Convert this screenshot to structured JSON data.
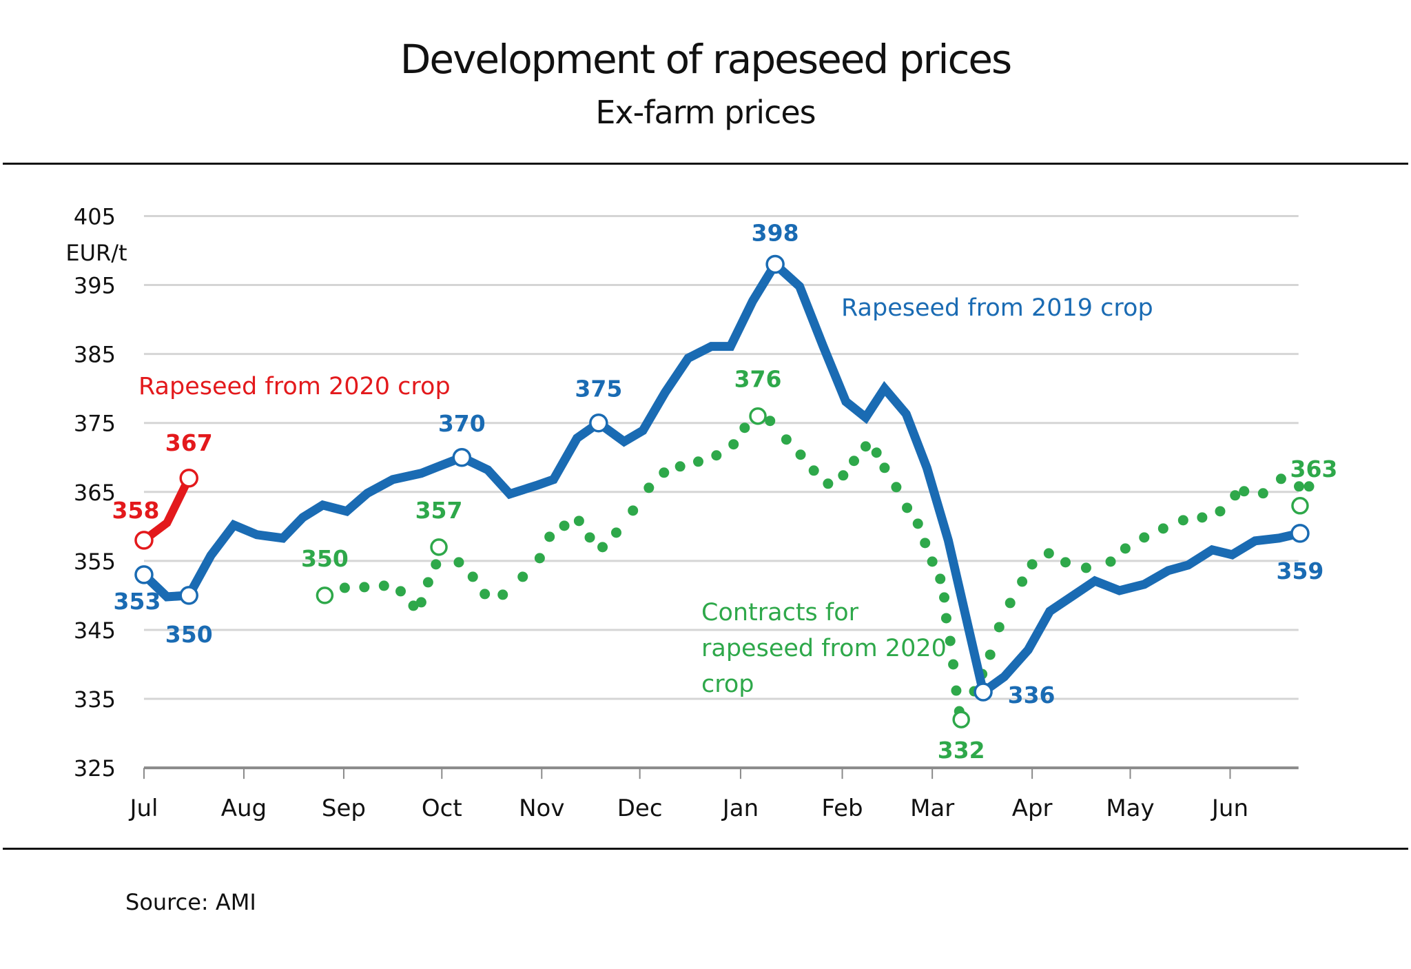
{
  "header": {
    "title": "Development of rapeseed prices",
    "subtitle": "Ex-farm prices"
  },
  "footer": {
    "source": "Source: AMI"
  },
  "colors": {
    "blue": "#1a6bb3",
    "green": "#2ea84a",
    "red": "#e3191c",
    "grid": "#d5d5d5",
    "axis": "#8a8a8a"
  },
  "chart_data": {
    "type": "line",
    "title": "Development of rapeseed prices",
    "subtitle": "Ex-farm prices",
    "xlabel": "",
    "ylabel": "EUR/t",
    "ylim": [
      325,
      405
    ],
    "yticks": [
      325,
      335,
      345,
      355,
      365,
      375,
      385,
      395,
      405
    ],
    "grid": true,
    "x_unit": "months since start of July",
    "categories": [
      "Jul",
      "Aug",
      "Sep",
      "Oct",
      "Nov",
      "Dec",
      "Jan",
      "Feb",
      "Mar",
      "Apr",
      "May",
      "Jun"
    ],
    "series": [
      {
        "name": "Rapeseed from 2019 crop",
        "color_key": "blue",
        "style": "solid",
        "x": [
          0.0,
          0.23,
          0.45,
          0.67,
          0.9,
          1.13,
          1.39,
          1.59,
          1.79,
          2.03,
          2.24,
          2.5,
          2.79,
          2.95,
          3.2,
          3.46,
          3.68,
          3.96,
          4.12,
          4.36,
          4.58,
          4.84,
          5.03,
          5.25,
          5.48,
          5.71,
          5.9,
          6.12,
          6.34,
          6.58,
          6.81,
          7.04,
          7.26,
          7.47,
          7.71,
          7.94,
          8.16,
          8.51,
          8.72,
          8.96,
          9.18,
          9.41,
          9.64,
          9.89,
          10.14,
          10.38,
          10.58,
          10.82,
          11.02,
          11.25,
          11.49,
          11.7
        ],
        "values": [
          353,
          349.8,
          350,
          355.8,
          360.2,
          358.8,
          358.3,
          361.3,
          363.1,
          362.2,
          364.8,
          366.8,
          367.7,
          368.6,
          370,
          368.2,
          364.7,
          366.0,
          366.8,
          372.8,
          375,
          372.3,
          373.9,
          379.4,
          384.4,
          386.1,
          386.1,
          392.7,
          398,
          394.8,
          386.2,
          378.1,
          375.8,
          380.0,
          376.3,
          368.5,
          358.0,
          336,
          338.2,
          342.1,
          347.7,
          349.9,
          352.1,
          350.7,
          351.6,
          353.6,
          354.4,
          356.6,
          355.9,
          357.9,
          358.3,
          359
        ],
        "labels": [
          {
            "index": 0,
            "text": "353"
          },
          {
            "index": 2,
            "text": "350"
          },
          {
            "index": 14,
            "text": "370"
          },
          {
            "index": 20,
            "text": "375"
          },
          {
            "index": 28,
            "text": "398"
          },
          {
            "index": 37,
            "text": "336"
          },
          {
            "index": 51,
            "text": "359"
          }
        ]
      },
      {
        "name": "Contracts for rapeseed from 2020 crop",
        "color_key": "green",
        "style": "dotted",
        "x": [
          1.81,
          2.01,
          2.21,
          2.41,
          2.58,
          2.71,
          2.79,
          2.86,
          2.94,
          2.97,
          3.17,
          3.31,
          3.43,
          3.61,
          3.81,
          3.98,
          4.08,
          4.23,
          4.38,
          4.49,
          4.62,
          4.76,
          4.93,
          5.09,
          5.24,
          5.4,
          5.58,
          5.76,
          5.93,
          6.04,
          6.17,
          6.29,
          6.45,
          6.59,
          6.72,
          6.86,
          7.01,
          7.13,
          7.26,
          7.38,
          7.47,
          7.6,
          7.72,
          7.84,
          7.92,
          8.0,
          8.08,
          8.12,
          8.14,
          8.18,
          8.21,
          8.24,
          8.27,
          8.29,
          8.27,
          8.42,
          8.5,
          8.58,
          8.67,
          8.78,
          8.9,
          9.0,
          9.17,
          9.34,
          9.55,
          9.8,
          9.95,
          10.14,
          10.33,
          10.53,
          10.72,
          10.9,
          11.05,
          11.14,
          11.33,
          11.51,
          11.69,
          11.79,
          11.7
        ],
        "values": [
          350,
          351.1,
          351.2,
          351.4,
          350.6,
          348.5,
          349.0,
          351.9,
          354.5,
          357,
          354.8,
          352.7,
          350.2,
          350.1,
          352.7,
          355.4,
          358.5,
          360.1,
          360.8,
          358.4,
          357.0,
          359.1,
          362.3,
          365.6,
          367.8,
          368.7,
          369.4,
          370.3,
          371.9,
          374.3,
          376,
          375.3,
          372.6,
          370.4,
          368.1,
          366.2,
          367.4,
          369.5,
          371.6,
          370.7,
          368.5,
          365.7,
          362.7,
          360.4,
          357.6,
          354.9,
          352.4,
          349.7,
          346.7,
          343.4,
          340.0,
          336.2,
          333.2,
          332,
          332,
          336.1,
          338.6,
          341.4,
          345.4,
          348.9,
          352.0,
          354.5,
          356.1,
          354.8,
          354.0,
          354.9,
          356.8,
          358.4,
          359.7,
          360.9,
          361.3,
          362.2,
          364.5,
          365.1,
          364.8,
          366.9,
          365.8,
          365.8,
          363
        ],
        "labels": [
          {
            "index": 0,
            "text": "350"
          },
          {
            "index": 9,
            "text": "357"
          },
          {
            "index": 30,
            "text": "376"
          },
          {
            "index": 53,
            "text": "332"
          },
          {
            "index": 78,
            "text": "363"
          }
        ]
      },
      {
        "name": "Rapeseed from 2020 crop",
        "color_key": "red",
        "style": "solid",
        "x": [
          0.0,
          0.23,
          0.45
        ],
        "values": [
          358,
          360.5,
          367
        ],
        "labels": [
          {
            "index": 0,
            "text": "358"
          },
          {
            "index": 2,
            "text": "367"
          }
        ]
      }
    ]
  }
}
